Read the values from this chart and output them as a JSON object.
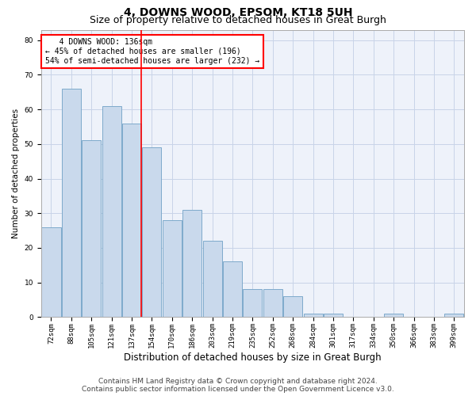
{
  "title1": "4, DOWNS WOOD, EPSOM, KT18 5UH",
  "title2": "Size of property relative to detached houses in Great Burgh",
  "xlabel": "Distribution of detached houses by size in Great Burgh",
  "ylabel": "Number of detached properties",
  "categories": [
    "72sqm",
    "88sqm",
    "105sqm",
    "121sqm",
    "137sqm",
    "154sqm",
    "170sqm",
    "186sqm",
    "203sqm",
    "219sqm",
    "235sqm",
    "252sqm",
    "268sqm",
    "284sqm",
    "301sqm",
    "317sqm",
    "334sqm",
    "350sqm",
    "366sqm",
    "383sqm",
    "399sqm"
  ],
  "values": [
    26,
    66,
    51,
    61,
    56,
    49,
    28,
    31,
    22,
    16,
    8,
    8,
    6,
    1,
    1,
    0,
    0,
    1,
    0,
    0,
    1
  ],
  "bar_color": "#c9d9ec",
  "bar_edge_color": "#7eaacb",
  "red_line_index": 4,
  "annotation_line1": "   4 DOWNS WOOD: 136sqm",
  "annotation_line2": "← 45% of detached houses are smaller (196)",
  "annotation_line3": "54% of semi-detached houses are larger (232) →",
  "annotation_box_color": "white",
  "annotation_box_edge_color": "red",
  "red_line_color": "red",
  "ylim": [
    0,
    83
  ],
  "yticks": [
    0,
    10,
    20,
    30,
    40,
    50,
    60,
    70,
    80
  ],
  "grid_color": "#c8d4e8",
  "bg_color": "#eef2fa",
  "footer1": "Contains HM Land Registry data © Crown copyright and database right 2024.",
  "footer2": "Contains public sector information licensed under the Open Government Licence v3.0.",
  "title1_fontsize": 10,
  "title2_fontsize": 9,
  "xlabel_fontsize": 8.5,
  "ylabel_fontsize": 7.5,
  "tick_fontsize": 6.5,
  "annot_fontsize": 7,
  "footer_fontsize": 6.5
}
